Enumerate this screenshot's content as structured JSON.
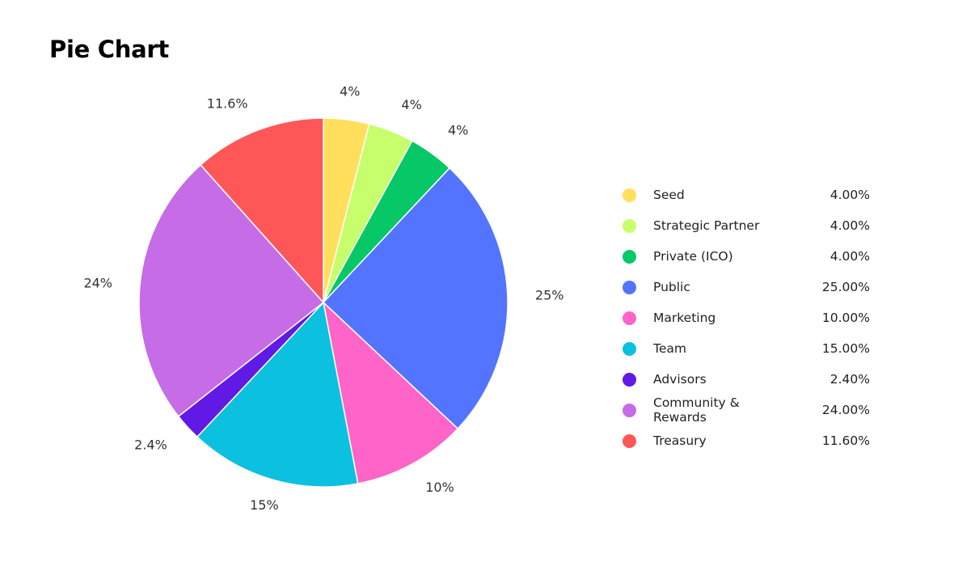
{
  "chart_data": {
    "type": "pie",
    "title": "Pie Chart",
    "legend_position": "right",
    "slices": [
      {
        "name": "Seed",
        "value": 4,
        "label": "4%",
        "legend_value": "4.00%",
        "color": "#FFDF5C"
      },
      {
        "name": "Strategic Partner",
        "value": 4,
        "label": "4%",
        "legend_value": "4.00%",
        "color": "#C6FF6B"
      },
      {
        "name": "Private (ICO)",
        "value": 4,
        "label": "4%",
        "legend_value": "4.00%",
        "color": "#07C866"
      },
      {
        "name": "Public",
        "value": 25,
        "label": "25%",
        "legend_value": "25.00%",
        "color": "#5274FF"
      },
      {
        "name": "Marketing",
        "value": 10,
        "label": "10%",
        "legend_value": "10.00%",
        "color": "#FF64C8"
      },
      {
        "name": "Team",
        "value": 15,
        "label": "15%",
        "legend_value": "15.00%",
        "color": "#0CC0E0"
      },
      {
        "name": "Advisors",
        "value": 2.4,
        "label": "2.4%",
        "legend_value": "2.40%",
        "color": "#6119E6"
      },
      {
        "name": "Community & Rewards",
        "value": 24,
        "label": "24%",
        "legend_value": "24.00%",
        "color": "#C56CE6"
      },
      {
        "name": "Treasury",
        "value": 11.6,
        "label": "11.6%",
        "legend_value": "11.60%",
        "color": "#FF5757"
      }
    ]
  }
}
